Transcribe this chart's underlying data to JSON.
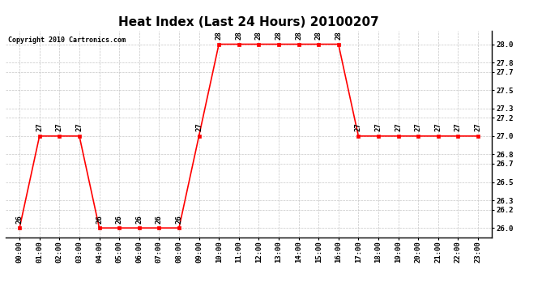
{
  "title": "Heat Index (Last 24 Hours) 20100207",
  "copyright": "Copyright 2010 Cartronics.com",
  "x_labels": [
    "00:00",
    "01:00",
    "02:00",
    "03:00",
    "04:00",
    "05:00",
    "06:00",
    "07:00",
    "08:00",
    "09:00",
    "10:00",
    "11:00",
    "12:00",
    "13:00",
    "14:00",
    "15:00",
    "16:00",
    "17:00",
    "18:00",
    "19:00",
    "20:00",
    "21:00",
    "22:00",
    "23:00"
  ],
  "x_values": [
    0,
    1,
    2,
    3,
    4,
    5,
    6,
    7,
    8,
    9,
    10,
    11,
    12,
    13,
    14,
    15,
    16,
    17,
    18,
    19,
    20,
    21,
    22,
    23
  ],
  "y_values": [
    26,
    27,
    27,
    27,
    26,
    26,
    26,
    26,
    26,
    27,
    28,
    28,
    28,
    28,
    28,
    28,
    28,
    27,
    27,
    27,
    27,
    27,
    27,
    27
  ],
  "ylim": [
    25.9,
    28.15
  ],
  "yticks": [
    26.0,
    26.2,
    26.3,
    26.5,
    26.7,
    26.8,
    27.0,
    27.2,
    27.3,
    27.5,
    27.7,
    27.8,
    28.0
  ],
  "line_color": "#ff0000",
  "marker_color": "#ff0000",
  "bg_color": "#ffffff",
  "grid_color": "#c0c0c0",
  "title_fontsize": 11,
  "tick_fontsize": 6.5,
  "copyright_fontsize": 6,
  "label_fontsize": 6.5
}
